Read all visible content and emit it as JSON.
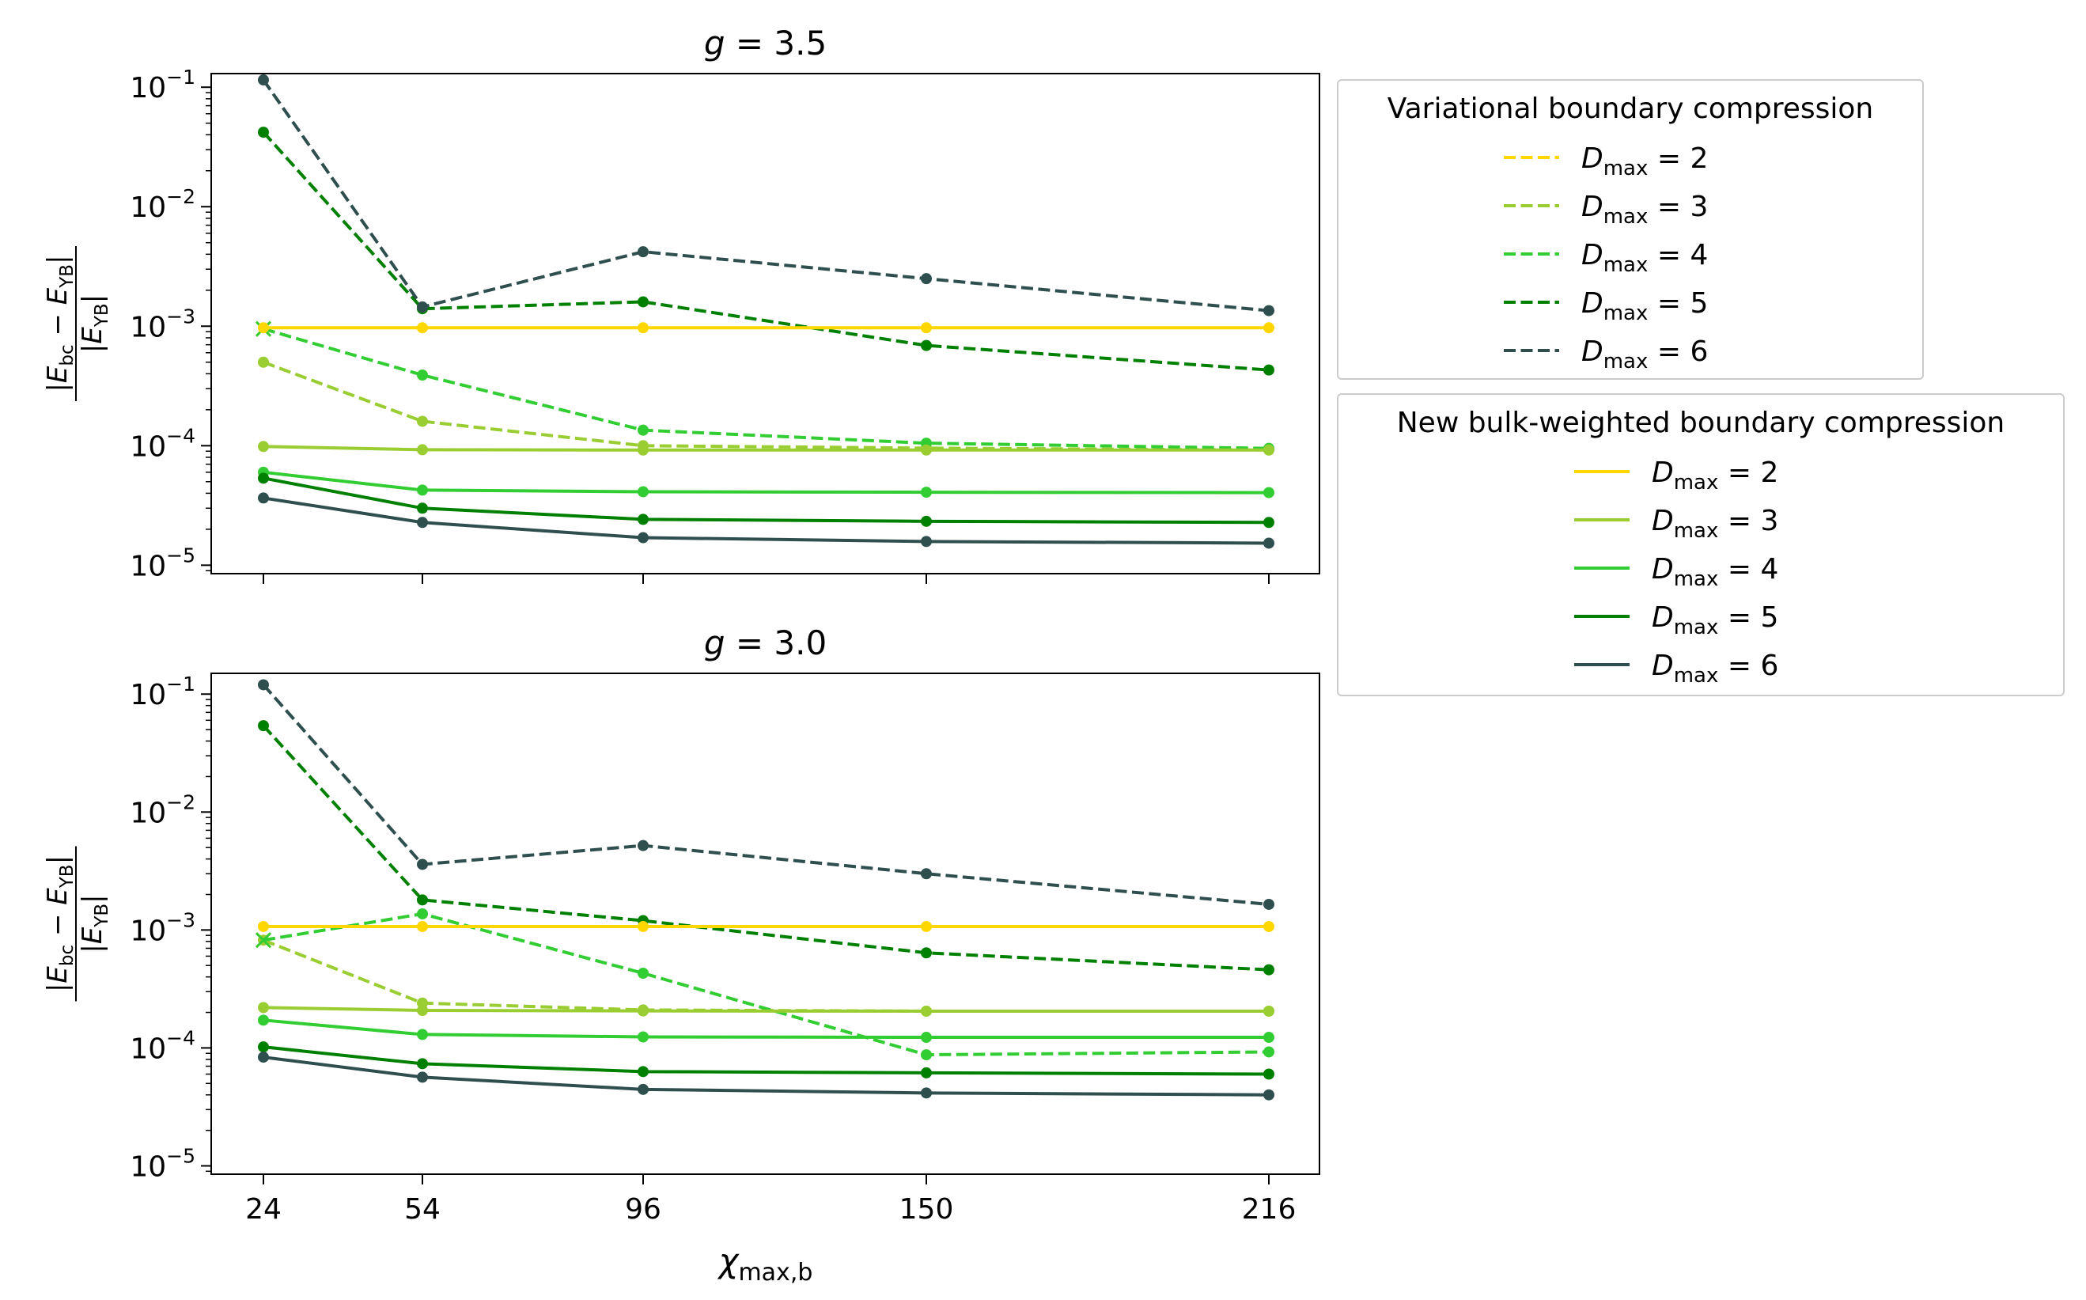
{
  "chart_data": [
    {
      "type": "line",
      "title": "g = 3.5",
      "title_var": "g",
      "title_rest": " = 3.5",
      "xlabel": "χmax,b",
      "ylabel": "|Ebc − EYB| / |EYB|",
      "yscale": "log",
      "ylim": [
        8.5e-06,
        0.13
      ],
      "x": [
        24,
        54,
        96,
        150,
        216
      ],
      "x_tick_labels": [
        "24",
        "54",
        "96",
        "150",
        "216"
      ],
      "y_ticks": [
        {
          "value": 0.1,
          "exp": "−1"
        },
        {
          "value": 0.01,
          "exp": "−2"
        },
        {
          "value": 0.001,
          "exp": "−3"
        },
        {
          "value": 0.0001,
          "exp": "−4"
        },
        {
          "value": 1e-05,
          "exp": "−5"
        }
      ],
      "series": [
        {
          "group": "variational",
          "d": "2",
          "style": "dashed",
          "color": "#FFD700",
          "x": [
            24
          ],
          "values": [
            0.00095
          ],
          "first_marker": "x"
        },
        {
          "group": "variational",
          "d": "3",
          "style": "dashed",
          "color": "#9ACD32",
          "x": [
            24,
            54,
            96,
            150,
            216
          ],
          "values": [
            0.0005,
            0.00016,
            0.0001,
            9.55e-05,
            9.2e-05
          ]
        },
        {
          "group": "variational",
          "d": "4",
          "style": "dashed",
          "color": "#32CD32",
          "x": [
            24,
            54,
            96,
            150,
            216
          ],
          "values": [
            0.00095,
            0.00039,
            0.000135,
            0.000105,
            9.5e-05
          ],
          "first_marker": "x"
        },
        {
          "group": "variational",
          "d": "5",
          "style": "dashed",
          "color": "#008000",
          "x": [
            24,
            54,
            96,
            150,
            216
          ],
          "values": [
            0.042,
            0.0014,
            0.0016,
            0.00069,
            0.00043
          ]
        },
        {
          "group": "variational",
          "d": "6",
          "style": "dashed",
          "color": "#2F4F4F",
          "x": [
            24,
            54,
            96,
            150,
            216
          ],
          "values": [
            0.115,
            0.00145,
            0.0042,
            0.0025,
            0.00135
          ]
        },
        {
          "group": "bulk",
          "d": "2",
          "style": "solid",
          "color": "#FFD700",
          "x": [
            24,
            54,
            96,
            150,
            216
          ],
          "values": [
            0.00097,
            0.00097,
            0.00097,
            0.00097,
            0.00097
          ]
        },
        {
          "group": "bulk",
          "d": "3",
          "style": "solid",
          "color": "#9ACD32",
          "x": [
            24,
            54,
            96,
            150,
            216
          ],
          "values": [
            9.85e-05,
            9.25e-05,
            9.2e-05,
            9.2e-05,
            9.2e-05
          ]
        },
        {
          "group": "bulk",
          "d": "4",
          "style": "solid",
          "color": "#32CD32",
          "x": [
            24,
            54,
            96,
            150,
            216
          ],
          "values": [
            6e-05,
            4.25e-05,
            4.12e-05,
            4.08e-05,
            4.05e-05
          ]
        },
        {
          "group": "bulk",
          "d": "5",
          "style": "solid",
          "color": "#008000",
          "x": [
            24,
            54,
            96,
            150,
            216
          ],
          "values": [
            5.35e-05,
            3e-05,
            2.42e-05,
            2.33e-05,
            2.28e-05
          ]
        },
        {
          "group": "bulk",
          "d": "6",
          "style": "solid",
          "color": "#2F4F4F",
          "x": [
            24,
            54,
            96,
            150,
            216
          ],
          "values": [
            3.65e-05,
            2.28e-05,
            1.7e-05,
            1.58e-05,
            1.53e-05
          ]
        }
      ]
    },
    {
      "type": "line",
      "title": "g = 3.0",
      "title_var": "g",
      "title_rest": " = 3.0",
      "xlabel": "χmax,b",
      "ylabel": "|Ebc − EYB| / |EYB|",
      "yscale": "log",
      "ylim": [
        8.5e-06,
        0.15
      ],
      "x": [
        24,
        54,
        96,
        150,
        216
      ],
      "x_tick_labels": [
        "24",
        "54",
        "96",
        "150",
        "216"
      ],
      "y_ticks": [
        {
          "value": 0.1,
          "exp": "−1"
        },
        {
          "value": 0.01,
          "exp": "−2"
        },
        {
          "value": 0.001,
          "exp": "−3"
        },
        {
          "value": 0.0001,
          "exp": "−4"
        },
        {
          "value": 1e-05,
          "exp": "−5"
        }
      ],
      "series": [
        {
          "group": "variational",
          "d": "2",
          "style": "dashed",
          "color": "#FFD700",
          "x": [
            24
          ],
          "values": [
            0.00082
          ],
          "first_marker": "x"
        },
        {
          "group": "variational",
          "d": "3",
          "style": "dashed",
          "color": "#9ACD32",
          "x": [
            24,
            54,
            96,
            150,
            216
          ],
          "values": [
            0.00082,
            0.00024,
            0.00021,
            0.000205,
            0.000205
          ]
        },
        {
          "group": "variational",
          "d": "4",
          "style": "dashed",
          "color": "#32CD32",
          "x": [
            24,
            54,
            96,
            150,
            216
          ],
          "values": [
            0.00082,
            0.00137,
            0.00043,
            8.75e-05,
            9.25e-05
          ],
          "first_marker": "x"
        },
        {
          "group": "variational",
          "d": "5",
          "style": "dashed",
          "color": "#008000",
          "x": [
            24,
            54,
            96,
            150,
            216
          ],
          "values": [
            0.054,
            0.0018,
            0.0012,
            0.00064,
            0.00046
          ]
        },
        {
          "group": "variational",
          "d": "6",
          "style": "dashed",
          "color": "#2F4F4F",
          "x": [
            24,
            54,
            96,
            150,
            216
          ],
          "values": [
            0.12,
            0.0036,
            0.0052,
            0.003,
            0.00165
          ]
        },
        {
          "group": "bulk",
          "d": "2",
          "style": "solid",
          "color": "#FFD700",
          "x": [
            24,
            54,
            96,
            150,
            216
          ],
          "values": [
            0.00107,
            0.00107,
            0.00107,
            0.00107,
            0.00107
          ]
        },
        {
          "group": "bulk",
          "d": "3",
          "style": "solid",
          "color": "#9ACD32",
          "x": [
            24,
            54,
            96,
            150,
            216
          ],
          "values": [
            0.00022,
            0.000208,
            0.000206,
            0.000205,
            0.000205
          ]
        },
        {
          "group": "bulk",
          "d": "4",
          "style": "solid",
          "color": "#32CD32",
          "x": [
            24,
            54,
            96,
            150,
            216
          ],
          "values": [
            0.000172,
            0.00013,
            0.000124,
            0.000123,
            0.000123
          ]
        },
        {
          "group": "bulk",
          "d": "5",
          "style": "solid",
          "color": "#008000",
          "x": [
            24,
            54,
            96,
            150,
            216
          ],
          "values": [
            0.000102,
            7.35e-05,
            6.3e-05,
            6.15e-05,
            6e-05
          ]
        },
        {
          "group": "bulk",
          "d": "6",
          "style": "solid",
          "color": "#2F4F4F",
          "x": [
            24,
            54,
            96,
            150,
            216
          ],
          "values": [
            8.35e-05,
            5.65e-05,
            4.45e-05,
            4.15e-05,
            4e-05
          ]
        }
      ]
    }
  ],
  "legends": [
    {
      "group": "variational",
      "title": "Variational boundary compression",
      "entries": [
        {
          "d": "2",
          "color": "#FFD700",
          "style": "dashed"
        },
        {
          "d": "3",
          "color": "#9ACD32",
          "style": "dashed"
        },
        {
          "d": "4",
          "color": "#32CD32",
          "style": "dashed"
        },
        {
          "d": "5",
          "color": "#008000",
          "style": "dashed"
        },
        {
          "d": "6",
          "color": "#2F4F4F",
          "style": "dashed"
        }
      ]
    },
    {
      "group": "bulk",
      "title": "New bulk-weighted boundary compression",
      "entries": [
        {
          "d": "2",
          "color": "#FFD700",
          "style": "solid"
        },
        {
          "d": "3",
          "color": "#9ACD32",
          "style": "solid"
        },
        {
          "d": "4",
          "color": "#32CD32",
          "style": "solid"
        },
        {
          "d": "5",
          "color": "#008000",
          "style": "solid"
        },
        {
          "d": "6",
          "color": "#2F4F4F",
          "style": "solid"
        }
      ]
    }
  ],
  "labels": {
    "d_symbol": "D",
    "d_subscript": "max",
    "equals": " = ",
    "chi_symbol": "χ",
    "chi_subscript": "max,b",
    "ytick_base": "10",
    "ylabel_num_E1": "E",
    "ylabel_num_sub1": "bc",
    "ylabel_minus": " − ",
    "ylabel_num_E2": "E",
    "ylabel_num_sub2": "YB",
    "ylabel_den_E": "E",
    "ylabel_den_sub": "YB",
    "bar": "|"
  }
}
